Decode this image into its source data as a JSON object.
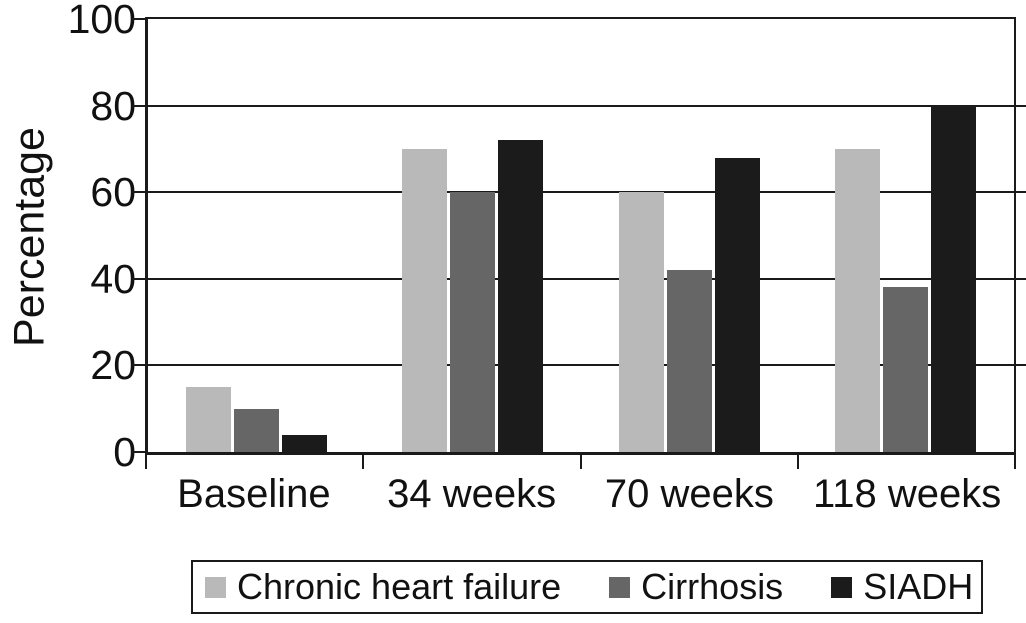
{
  "chart_data": {
    "type": "bar",
    "title": "",
    "xlabel": "",
    "ylabel": "Percentage",
    "categories": [
      "Baseline",
      "34 weeks",
      "70 weeks",
      "118 weeks"
    ],
    "series": [
      {
        "name": "Chronic heart failure",
        "color": "#b9b9b9",
        "values": [
          15,
          70,
          60,
          70
        ]
      },
      {
        "name": "Cirrhosis",
        "color": "#666666",
        "values": [
          10,
          60,
          42,
          38
        ]
      },
      {
        "name": "SIADH",
        "color": "#1b1b1b",
        "values": [
          4,
          72,
          68,
          80
        ]
      }
    ],
    "ylim": [
      0,
      100
    ],
    "yticks": [
      0,
      20,
      40,
      60,
      80,
      100
    ],
    "grid": true,
    "axis_color": "#1a1a1a",
    "legend_position": "bottom-boxed"
  }
}
